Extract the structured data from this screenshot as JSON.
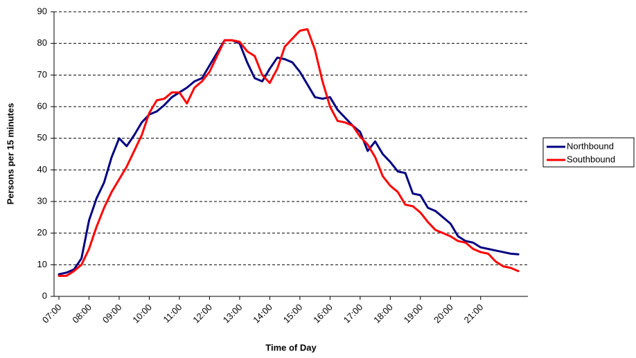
{
  "chart_data": {
    "type": "line",
    "x_label": "Time of Day",
    "y_label": "Persons per 15 minutes",
    "categories": [
      "07:00",
      null,
      null,
      null,
      "08:00",
      null,
      null,
      null,
      "09:00",
      null,
      null,
      null,
      "10:00",
      null,
      null,
      null,
      "11:00",
      null,
      null,
      null,
      "12:00",
      null,
      null,
      null,
      "13:00",
      null,
      null,
      null,
      "14:00",
      null,
      null,
      null,
      "15:00",
      null,
      null,
      null,
      "16:00",
      null,
      null,
      null,
      "17:00",
      null,
      null,
      null,
      "18:00",
      null,
      null,
      null,
      "19:00",
      null,
      null,
      null,
      "20:00",
      null,
      null,
      null,
      "21:00",
      null,
      null,
      null,
      null,
      null
    ],
    "series": [
      {
        "name": "Northbound",
        "color": "#000080",
        "values": [
          7,
          7.5,
          8.5,
          12,
          24,
          31,
          36,
          44,
          50,
          47.5,
          51,
          55,
          57.5,
          58.5,
          60.5,
          63,
          64.5,
          66,
          68,
          69,
          73,
          77,
          81,
          81,
          80,
          74,
          69,
          68,
          72,
          75.5,
          75,
          74,
          71,
          67,
          63,
          62.5,
          63,
          59,
          56.5,
          54,
          52,
          46,
          49,
          45,
          42.5,
          39.5,
          39,
          32.5,
          32,
          28,
          27,
          25,
          23,
          19,
          17.5,
          17,
          15.5,
          15,
          14.5,
          14,
          13.5,
          13.3
        ]
      },
      {
        "name": "Southbound",
        "color": "#ff0000",
        "values": [
          6.5,
          6.5,
          8,
          10,
          15,
          22,
          28,
          33,
          37,
          41,
          46,
          51,
          58,
          62,
          62.5,
          64.5,
          64.5,
          61,
          66,
          68,
          71,
          76,
          81,
          81,
          80.5,
          77.5,
          76,
          70,
          67.5,
          72,
          79,
          81.5,
          84,
          84.5,
          78,
          68,
          60,
          55.5,
          55,
          54,
          50.5,
          48,
          44,
          38,
          35,
          33,
          29,
          28.5,
          26.5,
          23.5,
          21,
          20,
          19,
          17.5,
          17,
          15,
          14,
          13.5,
          11,
          9.5,
          9,
          8
        ]
      }
    ],
    "ylim": [
      0,
      90
    ],
    "yticks": [
      0,
      10,
      20,
      30,
      40,
      50,
      60,
      70,
      80,
      90
    ],
    "grid": true,
    "legend": "right"
  }
}
